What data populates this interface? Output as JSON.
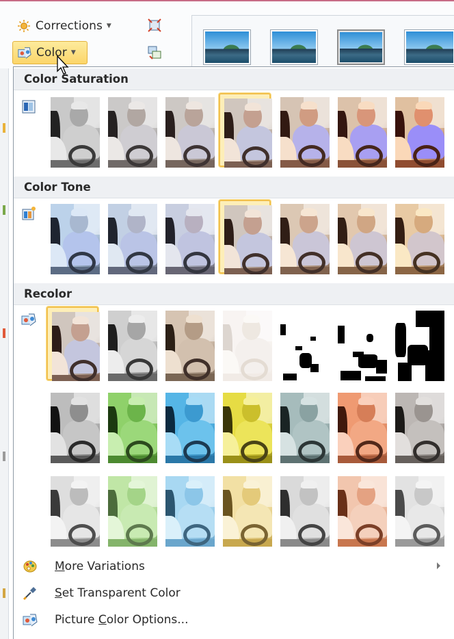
{
  "ribbon": {
    "corrections_label": "Corrections",
    "color_label": "Color"
  },
  "panel": {
    "sections": {
      "saturation": "Color Saturation",
      "tone": "Color Tone",
      "recolor": "Recolor"
    },
    "menu": {
      "more_variations": {
        "prefix": "",
        "ul": "M",
        "rest": "ore Variations"
      },
      "set_transparent": {
        "prefix": "",
        "ul": "S",
        "rest": "et Transparent Color"
      },
      "picture_color_options": {
        "prefix": "Picture ",
        "ul": "C",
        "rest": "olor Options..."
      }
    }
  },
  "colors": {
    "accent_selected": "#f2c04d",
    "header_bg": "#eef0f3"
  },
  "icons": {
    "corrections": "sun-icon",
    "color": "color-palette-icon",
    "more_variations": "palette-icon",
    "set_transparent": "eyedropper-icon",
    "picture_color_options": "color-options-icon"
  },
  "selections": {
    "saturation_selected_index": 3,
    "tone_selected_index": 3,
    "recolor_selected_index": 0
  }
}
